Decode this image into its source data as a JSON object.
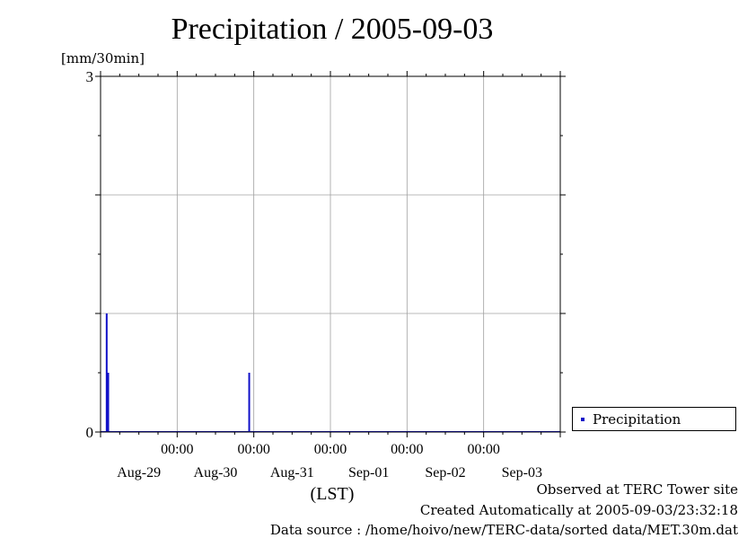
{
  "chart_data": {
    "type": "bar",
    "title": "Precipitation / 2005-09-03",
    "ylabel": "[mm/30min]",
    "xlabel": "(LST)",
    "ylim": [
      0,
      3
    ],
    "ytick_labels": [
      "0",
      "3"
    ],
    "x_tick_time_labels": [
      "00:00",
      "00:00",
      "00:00",
      "00:00",
      "00:00"
    ],
    "x_tick_date_labels": [
      "Aug-29",
      "Aug-30",
      "Aug-31",
      "Sep-01",
      "Sep-02",
      "Sep-03"
    ],
    "x_range_days": [
      0,
      6
    ],
    "grid": true,
    "legend_position": "right",
    "series": [
      {
        "name": "Precipitation",
        "color": "#1010c8",
        "points": [
          {
            "x_day": 0.08,
            "y": 1.0
          },
          {
            "x_day": 0.1,
            "y": 0.5
          },
          {
            "x_day": 1.94,
            "y": 0.5
          }
        ]
      }
    ]
  },
  "legend": {
    "label": "Precipitation"
  },
  "footer": {
    "observed": "Observed at TERC Tower site",
    "created": "Created Automatically at 2005-09-03/23:32:18",
    "source": "Data source : /home/hoivo/new/TERC-data/sorted  data/MET.30m.dat"
  }
}
